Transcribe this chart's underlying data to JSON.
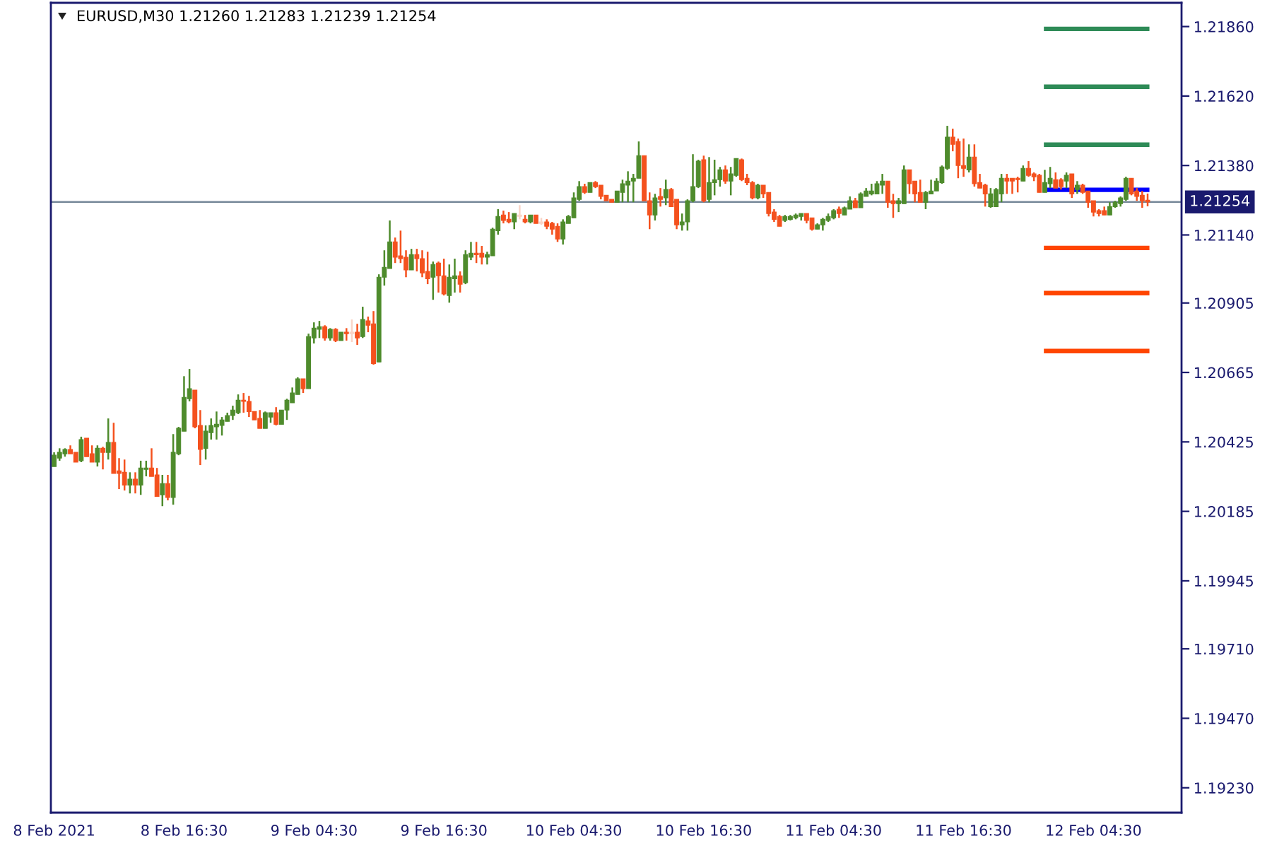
{
  "chart_data": {
    "type": "candlestick",
    "title": "EURUSD,M30 1.21260 1.21283 1.21239 1.21254",
    "x": [
      "2021-02-08T04:30",
      "2021-02-08T05:00",
      "2021-02-08T05:30",
      "2021-02-08T06:00",
      "2021-02-08T06:30",
      "2021-02-08T07:00",
      "2021-02-08T07:30",
      "2021-02-08T08:00",
      "2021-02-08T08:30",
      "2021-02-08T09:00",
      "2021-02-08T09:30",
      "2021-02-08T10:00",
      "2021-02-08T10:30",
      "2021-02-08T11:00",
      "2021-02-08T11:30",
      "2021-02-08T12:00",
      "2021-02-08T12:30",
      "2021-02-08T13:00",
      "2021-02-08T13:30",
      "2021-02-08T14:00",
      "2021-02-08T14:30",
      "2021-02-08T15:00",
      "2021-02-08T15:30",
      "2021-02-08T16:00",
      "2021-02-08T16:30",
      "2021-02-08T17:00",
      "2021-02-08T17:30",
      "2021-02-08T18:00",
      "2021-02-08T18:30",
      "2021-02-08T19:00",
      "2021-02-08T19:30",
      "2021-02-08T20:00",
      "2021-02-08T20:30",
      "2021-02-08T21:00",
      "2021-02-08T21:30",
      "2021-02-08T22:00",
      "2021-02-08T22:30",
      "2021-02-08T23:00",
      "2021-02-08T23:30",
      "2021-02-09T00:00",
      "2021-02-09T00:30",
      "2021-02-09T01:00",
      "2021-02-09T01:30",
      "2021-02-09T02:00",
      "2021-02-09T02:30",
      "2021-02-09T03:00",
      "2021-02-09T03:30",
      "2021-02-09T04:00",
      "2021-02-09T04:30",
      "2021-02-09T05:00",
      "2021-02-09T05:30",
      "2021-02-09T06:00",
      "2021-02-09T06:30",
      "2021-02-09T07:00",
      "2021-02-09T07:30",
      "2021-02-09T08:00",
      "2021-02-09T08:30",
      "2021-02-09T09:00",
      "2021-02-09T09:30",
      "2021-02-09T10:00",
      "2021-02-09T10:30",
      "2021-02-09T11:00",
      "2021-02-09T11:30",
      "2021-02-09T12:00",
      "2021-02-09T12:30",
      "2021-02-09T13:00",
      "2021-02-09T13:30",
      "2021-02-09T14:00",
      "2021-02-09T14:30",
      "2021-02-09T15:00",
      "2021-02-09T15:30",
      "2021-02-09T16:00",
      "2021-02-09T16:30",
      "2021-02-09T17:00",
      "2021-02-09T17:30",
      "2021-02-09T18:00",
      "2021-02-09T18:30",
      "2021-02-09T19:00",
      "2021-02-09T19:30",
      "2021-02-09T20:00",
      "2021-02-09T20:30",
      "2021-02-09T21:00",
      "2021-02-09T21:30",
      "2021-02-09T22:00",
      "2021-02-09T22:30",
      "2021-02-09T23:00",
      "2021-02-09T23:30",
      "2021-02-10T00:00",
      "2021-02-10T00:30",
      "2021-02-10T01:00",
      "2021-02-10T01:30",
      "2021-02-10T02:00",
      "2021-02-10T02:30",
      "2021-02-10T03:00",
      "2021-02-10T03:30",
      "2021-02-10T04:00",
      "2021-02-10T04:30",
      "2021-02-10T05:00",
      "2021-02-10T05:30",
      "2021-02-10T06:00",
      "2021-02-10T06:30",
      "2021-02-10T07:00",
      "2021-02-10T07:30",
      "2021-02-10T08:00",
      "2021-02-10T08:30",
      "2021-02-10T09:00",
      "2021-02-10T09:30",
      "2021-02-10T10:00",
      "2021-02-10T10:30",
      "2021-02-10T11:00",
      "2021-02-10T11:30",
      "2021-02-10T12:00",
      "2021-02-10T12:30",
      "2021-02-10T13:00",
      "2021-02-10T13:30",
      "2021-02-10T14:00",
      "2021-02-10T14:30",
      "2021-02-10T15:00",
      "2021-02-10T15:30",
      "2021-02-10T16:00",
      "2021-02-10T16:30",
      "2021-02-10T17:00",
      "2021-02-10T17:30",
      "2021-02-10T18:00",
      "2021-02-10T18:30",
      "2021-02-10T19:00",
      "2021-02-10T19:30",
      "2021-02-10T20:00",
      "2021-02-10T20:30",
      "2021-02-10T21:00",
      "2021-02-10T21:30",
      "2021-02-10T22:00",
      "2021-02-10T22:30",
      "2021-02-10T23:00",
      "2021-02-10T23:30",
      "2021-02-11T00:00",
      "2021-02-11T00:30",
      "2021-02-11T01:00",
      "2021-02-11T01:30",
      "2021-02-11T02:00",
      "2021-02-11T02:30",
      "2021-02-11T03:00",
      "2021-02-11T03:30",
      "2021-02-11T04:00",
      "2021-02-11T04:30",
      "2021-02-11T05:00",
      "2021-02-11T05:30",
      "2021-02-11T06:00",
      "2021-02-11T06:30",
      "2021-02-11T07:00",
      "2021-02-11T07:30",
      "2021-02-11T08:00",
      "2021-02-11T08:30",
      "2021-02-11T09:00",
      "2021-02-11T09:30",
      "2021-02-11T10:00",
      "2021-02-11T10:30",
      "2021-02-11T11:00",
      "2021-02-11T11:30",
      "2021-02-11T12:00",
      "2021-02-11T12:30",
      "2021-02-11T13:00",
      "2021-02-11T13:30",
      "2021-02-11T14:00",
      "2021-02-11T14:30",
      "2021-02-11T15:00",
      "2021-02-11T15:30",
      "2021-02-11T16:00",
      "2021-02-11T16:30",
      "2021-02-11T17:00",
      "2021-02-11T17:30",
      "2021-02-11T18:00",
      "2021-02-11T18:30",
      "2021-02-11T19:00",
      "2021-02-11T19:30",
      "2021-02-11T20:00",
      "2021-02-11T20:30",
      "2021-02-11T21:00",
      "2021-02-11T21:30",
      "2021-02-11T22:00",
      "2021-02-11T22:30",
      "2021-02-11T23:00",
      "2021-02-11T23:30",
      "2021-02-12T00:00",
      "2021-02-12T00:30",
      "2021-02-12T01:00",
      "2021-02-12T01:30",
      "2021-02-12T02:00",
      "2021-02-12T02:30",
      "2021-02-12T03:00",
      "2021-02-12T03:30",
      "2021-02-12T04:00",
      "2021-02-12T04:30",
      "2021-02-12T05:00",
      "2021-02-12T05:30",
      "2021-02-12T06:00",
      "2021-02-12T06:30",
      "2021-02-12T07:00",
      "2021-02-12T07:30",
      "2021-02-12T08:00",
      "2021-02-12T08:30",
      "2021-02-12T09:00",
      "2021-02-12T09:30"
    ],
    "ohlc": [
      [
        1.2034,
        1.20389,
        1.2034,
        1.20379
      ],
      [
        1.20369,
        1.20403,
        1.2036,
        1.20389
      ],
      [
        1.20384,
        1.20403,
        1.20374,
        1.20399
      ],
      [
        1.20399,
        1.20413,
        1.20384,
        1.20384
      ],
      [
        1.20389,
        1.20389,
        1.20355,
        1.20355
      ],
      [
        1.2036,
        1.20443,
        1.20355,
        1.20433
      ],
      [
        1.20438,
        1.20438,
        1.20374,
        1.20374
      ],
      [
        1.20384,
        1.20413,
        1.20355,
        1.20355
      ],
      [
        1.20355,
        1.20413,
        1.2034,
        1.20403
      ],
      [
        1.20403,
        1.20408,
        1.2033,
        1.20389
      ],
      [
        1.20389,
        1.20506,
        1.20364,
        1.20423
      ],
      [
        1.20423,
        1.20491,
        1.20316,
        1.20316
      ],
      [
        1.20325,
        1.20369,
        1.20262,
        1.20316
      ],
      [
        1.2032,
        1.20364,
        1.20257,
        1.20276
      ],
      [
        1.20276,
        1.2032,
        1.20247,
        1.20296
      ],
      [
        1.20296,
        1.2032,
        1.20247,
        1.20276
      ],
      [
        1.20276,
        1.2036,
        1.20242,
        1.20335
      ],
      [
        1.2033,
        1.2036,
        1.20306,
        1.20335
      ],
      [
        1.20335,
        1.20403,
        1.20306,
        1.20306
      ],
      [
        1.20311,
        1.20335,
        1.20237,
        1.20237
      ],
      [
        1.20242,
        1.20311,
        1.20203,
        1.20281
      ],
      [
        1.20281,
        1.20311,
        1.20223,
        1.20233
      ],
      [
        1.20233,
        1.20452,
        1.20208,
        1.20389
      ],
      [
        1.20384,
        1.20477,
        1.20379,
        1.20472
      ],
      [
        1.20462,
        1.20652,
        1.20462,
        1.20579
      ],
      [
        1.20574,
        1.20677,
        1.20565,
        1.20609
      ],
      [
        1.20604,
        1.20604,
        1.20472,
        1.20477
      ],
      [
        1.20482,
        1.20535,
        1.20345,
        1.20399
      ],
      [
        1.20403,
        1.20482,
        1.20364,
        1.20462
      ],
      [
        1.20457,
        1.20506,
        1.20433,
        1.20482
      ],
      [
        1.20477,
        1.2053,
        1.20433,
        1.20486
      ],
      [
        1.20482,
        1.20511,
        1.20447,
        1.20501
      ],
      [
        1.20496,
        1.20526,
        1.20496,
        1.20516
      ],
      [
        1.20516,
        1.2055,
        1.20501,
        1.20535
      ],
      [
        1.20526,
        1.20589,
        1.20521,
        1.20569
      ],
      [
        1.20569,
        1.20594,
        1.20526,
        1.20565
      ],
      [
        1.20565,
        1.20584,
        1.20511,
        1.2053
      ],
      [
        1.2053,
        1.2053,
        1.20501,
        1.20501
      ],
      [
        1.20506,
        1.20535,
        1.20472,
        1.20472
      ],
      [
        1.20472,
        1.2053,
        1.20472,
        1.20526
      ],
      [
        1.20511,
        1.20526,
        1.20491,
        1.20526
      ],
      [
        1.20526,
        1.20545,
        1.20482,
        1.20486
      ],
      [
        1.20486,
        1.20535,
        1.20486,
        1.20535
      ],
      [
        1.20535,
        1.20574,
        1.20501,
        1.20569
      ],
      [
        1.2056,
        1.20613,
        1.2056,
        1.20594
      ],
      [
        1.20589,
        1.20648,
        1.20589,
        1.20643
      ],
      [
        1.20643,
        1.20643,
        1.20594,
        1.20609
      ],
      [
        1.20609,
        1.20799,
        1.20609,
        1.20789
      ],
      [
        1.20784,
        1.20838,
        1.20765,
        1.20818
      ],
      [
        1.20814,
        1.20843,
        1.20784,
        1.20823
      ],
      [
        1.20823,
        1.20828,
        1.20775,
        1.20784
      ],
      [
        1.20784,
        1.20818,
        1.20775,
        1.20814
      ],
      [
        1.20814,
        1.20818,
        1.2077,
        1.20775
      ],
      [
        1.20775,
        1.20804,
        1.20775,
        1.20804
      ],
      [
        1.20804,
        1.20818,
        1.20775,
        1.20799
      ],
      [
        1.20804,
        1.20848,
        1.2077,
        1.20799
      ],
      [
        1.20804,
        1.20833,
        1.2076,
        1.20784
      ],
      [
        1.20789,
        1.20892,
        1.20784,
        1.20848
      ],
      [
        1.20843,
        1.20858,
        1.20804,
        1.20828
      ],
      [
        1.20833,
        1.20877,
        1.20692,
        1.20696
      ],
      [
        1.20701,
        1.21004,
        1.20701,
        1.20994
      ],
      [
        1.20994,
        1.21087,
        1.20965,
        1.21028
      ],
      [
        1.21024,
        1.2119,
        1.21024,
        1.21116
      ],
      [
        1.21116,
        1.21131,
        1.21043,
        1.21063
      ],
      [
        1.21068,
        1.21155,
        1.21043,
        1.21058
      ],
      [
        1.21063,
        1.21087,
        1.20994,
        1.21019
      ],
      [
        1.21019,
        1.21092,
        1.21019,
        1.21072
      ],
      [
        1.21072,
        1.21092,
        1.21014,
        1.21058
      ],
      [
        1.21058,
        1.21087,
        1.20994,
        1.21009
      ],
      [
        1.21014,
        1.21082,
        1.2097,
        1.20989
      ],
      [
        1.20994,
        1.21048,
        1.20916,
        1.21038
      ],
      [
        1.21043,
        1.21048,
        1.20941,
        1.20999
      ],
      [
        1.20999,
        1.21058,
        1.20931,
        1.20936
      ],
      [
        1.20931,
        1.21038,
        1.20906,
        1.20994
      ],
      [
        1.20989,
        1.21058,
        1.20941,
        1.20999
      ],
      [
        1.20999,
        1.21014,
        1.20941,
        1.2097
      ],
      [
        1.20975,
        1.21087,
        1.2097,
        1.21072
      ],
      [
        1.21063,
        1.21116,
        1.21053,
        1.21077
      ],
      [
        1.21077,
        1.21116,
        1.21043,
        1.21072
      ],
      [
        1.21077,
        1.21102,
        1.21038,
        1.21063
      ],
      [
        1.21063,
        1.21082,
        1.21038,
        1.21072
      ],
      [
        1.21068,
        1.21165,
        1.21068,
        1.2116
      ],
      [
        1.21155,
        1.21229,
        1.21141,
        1.21204
      ],
      [
        1.21209,
        1.21224,
        1.2118,
        1.2119
      ],
      [
        1.21194,
        1.21219,
        1.2118,
        1.21185
      ],
      [
        1.21185,
        1.21214,
        1.2116,
        1.21214
      ],
      [
        1.21209,
        1.21243,
        1.21194,
        1.21204
      ],
      [
        1.21194,
        1.21209,
        1.2118,
        1.21185
      ],
      [
        1.21185,
        1.21209,
        1.2118,
        1.21209
      ],
      [
        1.21209,
        1.21209,
        1.2118,
        1.2118
      ],
      [
        1.21185,
        1.21199,
        1.21175,
        1.2118
      ],
      [
        1.21185,
        1.21194,
        1.2116,
        1.2117
      ],
      [
        1.2118,
        1.21185,
        1.21141,
        1.2116
      ],
      [
        1.2117,
        1.2118,
        1.21116,
        1.21126
      ],
      [
        1.21126,
        1.21194,
        1.21107,
        1.21185
      ],
      [
        1.2118,
        1.21209,
        1.2118,
        1.21204
      ],
      [
        1.21199,
        1.21287,
        1.21199,
        1.21268
      ],
      [
        1.21263,
        1.21326,
        1.21258,
        1.21307
      ],
      [
        1.21307,
        1.21317,
        1.21282,
        1.21287
      ],
      [
        1.21287,
        1.21321,
        1.21287,
        1.21321
      ],
      [
        1.21321,
        1.21326,
        1.21302,
        1.21307
      ],
      [
        1.21312,
        1.21312,
        1.21263,
        1.21273
      ],
      [
        1.21277,
        1.21277,
        1.21258,
        1.21258
      ],
      [
        1.21263,
        1.21263,
        1.21253,
        1.21253
      ],
      [
        1.21253,
        1.21292,
        1.21253,
        1.21292
      ],
      [
        1.21287,
        1.21331,
        1.21253,
        1.21317
      ],
      [
        1.21312,
        1.2136,
        1.21253,
        1.21326
      ],
      [
        1.21326,
        1.21351,
        1.21253,
        1.21336
      ],
      [
        1.21336,
        1.21463,
        1.21336,
        1.21414
      ],
      [
        1.21414,
        1.21414,
        1.21258,
        1.21258
      ],
      [
        1.21258,
        1.21287,
        1.2116,
        1.21209
      ],
      [
        1.21209,
        1.21282,
        1.2119,
        1.21268
      ],
      [
        1.21273,
        1.21302,
        1.21238,
        1.21263
      ],
      [
        1.21268,
        1.21331,
        1.21243,
        1.21297
      ],
      [
        1.21297,
        1.21302,
        1.21238,
        1.21238
      ],
      [
        1.21263,
        1.21263,
        1.2116,
        1.21175
      ],
      [
        1.21175,
        1.21214,
        1.21155,
        1.21185
      ],
      [
        1.21185,
        1.21263,
        1.21155,
        1.21258
      ],
      [
        1.21258,
        1.21419,
        1.21253,
        1.21307
      ],
      [
        1.21307,
        1.214,
        1.21302,
        1.21395
      ],
      [
        1.214,
        1.21414,
        1.21253,
        1.21258
      ],
      [
        1.21263,
        1.21409,
        1.21253,
        1.21321
      ],
      [
        1.21321,
        1.214,
        1.21277,
        1.21331
      ],
      [
        1.21331,
        1.21375,
        1.21307,
        1.21365
      ],
      [
        1.21365,
        1.2138,
        1.21317,
        1.21326
      ],
      [
        1.21326,
        1.21375,
        1.21277,
        1.21351
      ],
      [
        1.21346,
        1.21404,
        1.21341,
        1.21404
      ],
      [
        1.214,
        1.21404,
        1.21326,
        1.21331
      ],
      [
        1.21336,
        1.21351,
        1.21312,
        1.21321
      ],
      [
        1.21321,
        1.21326,
        1.21263,
        1.21268
      ],
      [
        1.21268,
        1.21317,
        1.21263,
        1.21312
      ],
      [
        1.21312,
        1.21312,
        1.21268,
        1.21282
      ],
      [
        1.21287,
        1.21287,
        1.21204,
        1.21214
      ],
      [
        1.21219,
        1.21229,
        1.21185,
        1.21194
      ],
      [
        1.21204,
        1.21209,
        1.2117,
        1.2117
      ],
      [
        1.2119,
        1.21209,
        1.21185,
        1.21204
      ],
      [
        1.21194,
        1.21209,
        1.2119,
        1.21204
      ],
      [
        1.21199,
        1.21214,
        1.21194,
        1.21209
      ],
      [
        1.21204,
        1.21214,
        1.2119,
        1.21214
      ],
      [
        1.21214,
        1.21214,
        1.2118,
        1.2119
      ],
      [
        1.21199,
        1.21199,
        1.21155,
        1.2116
      ],
      [
        1.2116,
        1.2118,
        1.2116,
        1.21175
      ],
      [
        1.21175,
        1.21199,
        1.21155,
        1.21194
      ],
      [
        1.2119,
        1.21214,
        1.21185,
        1.21204
      ],
      [
        1.21199,
        1.21229,
        1.21194,
        1.21224
      ],
      [
        1.21229,
        1.21238,
        1.21199,
        1.21214
      ],
      [
        1.21209,
        1.21238,
        1.21209,
        1.21234
      ],
      [
        1.21229,
        1.21273,
        1.21229,
        1.21258
      ],
      [
        1.21258,
        1.21268,
        1.21234,
        1.21234
      ],
      [
        1.21234,
        1.21287,
        1.21234,
        1.21282
      ],
      [
        1.21273,
        1.21302,
        1.21273,
        1.21292
      ],
      [
        1.21282,
        1.21317,
        1.21277,
        1.21292
      ],
      [
        1.21282,
        1.21326,
        1.21282,
        1.21317
      ],
      [
        1.21312,
        1.21351,
        1.21282,
        1.21326
      ],
      [
        1.21326,
        1.21326,
        1.21234,
        1.21253
      ],
      [
        1.21258,
        1.21282,
        1.21199,
        1.21248
      ],
      [
        1.21248,
        1.21268,
        1.21219,
        1.21258
      ],
      [
        1.21248,
        1.2138,
        1.21248,
        1.21365
      ],
      [
        1.21365,
        1.21365,
        1.21282,
        1.21317
      ],
      [
        1.21326,
        1.21326,
        1.21253,
        1.21282
      ],
      [
        1.21287,
        1.21331,
        1.21253,
        1.21253
      ],
      [
        1.21253,
        1.21292,
        1.21229,
        1.21287
      ],
      [
        1.21282,
        1.21331,
        1.21282,
        1.21292
      ],
      [
        1.21292,
        1.21336,
        1.21292,
        1.21326
      ],
      [
        1.21321,
        1.2138,
        1.21317,
        1.21375
      ],
      [
        1.2137,
        1.21517,
        1.21365,
        1.21478
      ],
      [
        1.21478,
        1.21507,
        1.21429,
        1.21453
      ],
      [
        1.21463,
        1.21473,
        1.21336,
        1.2138
      ],
      [
        1.2138,
        1.21473,
        1.21341,
        1.2137
      ],
      [
        1.21365,
        1.21453,
        1.21356,
        1.21409
      ],
      [
        1.21409,
        1.21453,
        1.21307,
        1.21317
      ],
      [
        1.21321,
        1.21351,
        1.21302,
        1.21302
      ],
      [
        1.21312,
        1.21317,
        1.21238,
        1.21282
      ],
      [
        1.21238,
        1.21302,
        1.21234,
        1.21282
      ],
      [
        1.21238,
        1.21302,
        1.21238,
        1.21297
      ],
      [
        1.21282,
        1.21351,
        1.21253,
        1.21336
      ],
      [
        1.21336,
        1.21351,
        1.21282,
        1.21326
      ],
      [
        1.21336,
        1.21336,
        1.21282,
        1.21326
      ],
      [
        1.21336,
        1.21341,
        1.21287,
        1.21331
      ],
      [
        1.21326,
        1.2138,
        1.21326,
        1.2137
      ],
      [
        1.2137,
        1.21395,
        1.21341,
        1.21346
      ],
      [
        1.21351,
        1.21356,
        1.21326,
        1.21341
      ],
      [
        1.21346,
        1.21351,
        1.21287,
        1.21287
      ],
      [
        1.21287,
        1.21365,
        1.21287,
        1.21321
      ],
      [
        1.21317,
        1.21375,
        1.21302,
        1.21336
      ],
      [
        1.21331,
        1.21356,
        1.21302,
        1.21302
      ],
      [
        1.21331,
        1.21336,
        1.21297,
        1.21307
      ],
      [
        1.21326,
        1.21356,
        1.21302,
        1.21346
      ],
      [
        1.21351,
        1.21351,
        1.21268,
        1.21282
      ],
      [
        1.21297,
        1.21326,
        1.21282,
        1.21312
      ],
      [
        1.21312,
        1.21317,
        1.21282,
        1.21287
      ],
      [
        1.21292,
        1.21292,
        1.21234,
        1.21253
      ],
      [
        1.21258,
        1.21258,
        1.21204,
        1.21219
      ],
      [
        1.21224,
        1.21229,
        1.21204,
        1.21214
      ],
      [
        1.21224,
        1.21238,
        1.21209,
        1.21209
      ],
      [
        1.21209,
        1.21253,
        1.21209,
        1.21238
      ],
      [
        1.21238,
        1.21258,
        1.21234,
        1.21253
      ],
      [
        1.21248,
        1.21273,
        1.21238,
        1.21268
      ],
      [
        1.21263,
        1.21341,
        1.21258,
        1.21336
      ],
      [
        1.21336,
        1.21336,
        1.21277,
        1.21282
      ],
      [
        1.21292,
        1.21302,
        1.21258,
        1.21273
      ],
      [
        1.21277,
        1.21292,
        1.21234,
        1.21258
      ],
      [
        1.2126,
        1.21283,
        1.21239,
        1.21254
      ]
    ],
    "colors": [
      "#4e8b2c",
      "#4e8b2c",
      "#4e8b2c",
      "#f4511e",
      "#f4511e",
      "#4e8b2c",
      "#f4511e",
      "#f4511e",
      "#4e8b2c",
      "#f4511e",
      "#4e8b2c",
      "#f4511e",
      "#f4511e",
      "#f4511e",
      "#4e8b2c",
      "#f4511e",
      "#4e8b2c",
      "#4e8b2c",
      "#f4511e",
      "#f4511e",
      "#4e8b2c",
      "#f4511e",
      "#4e8b2c",
      "#4e8b2c",
      "#4e8b2c",
      "#4e8b2c",
      "#f4511e",
      "#f4511e",
      "#4e8b2c",
      "#4e8b2c",
      "#4e8b2c",
      "#4e8b2c",
      "#4e8b2c",
      "#4e8b2c",
      "#4e8b2c",
      "#f4511e",
      "#f4511e",
      "#f4511e",
      "#f4511e",
      "#4e8b2c",
      "#4e8b2c",
      "#f4511e",
      "#4e8b2c",
      "#4e8b2c",
      "#4e8b2c",
      "#4e8b2c",
      "#f4511e",
      "#4e8b2c",
      "#4e8b2c",
      "#4e8b2c",
      "#f4511e",
      "#4e8b2c",
      "#f4511e",
      "#4e8b2c",
      "#f4511e",
      "#f9d5c8",
      "#f4511e",
      "#4e8b2c",
      "#f4511e",
      "#f4511e",
      "#4e8b2c",
      "#4e8b2c",
      "#4e8b2c",
      "#f4511e",
      "#f4511e",
      "#f4511e",
      "#4e8b2c",
      "#f4511e",
      "#f4511e",
      "#f4511e",
      "#4e8b2c",
      "#f4511e",
      "#f4511e",
      "#4e8b2c",
      "#4e8b2c",
      "#f4511e",
      "#4e8b2c",
      "#4e8b2c",
      "#f4511e",
      "#f4511e",
      "#4e8b2c",
      "#4e8b2c",
      "#4e8b2c",
      "#f4511e",
      "#f4511e",
      "#4e8b2c",
      "#f9d5c8",
      "#f4511e",
      "#4e8b2c",
      "#f4511e",
      "#f9d5c8",
      "#f4511e",
      "#f4511e",
      "#f4511e",
      "#4e8b2c",
      "#4e8b2c",
      "#4e8b2c",
      "#4e8b2c",
      "#f4511e",
      "#4e8b2c",
      "#f4511e",
      "#f4511e",
      "#f4511e",
      "#f4511e",
      "#4e8b2c",
      "#4e8b2c",
      "#4e8b2c",
      "#4e8b2c",
      "#4e8b2c",
      "#f4511e",
      "#f4511e",
      "#4e8b2c",
      "#f4511e",
      "#4e8b2c",
      "#f4511e",
      "#f4511e",
      "#4e8b2c",
      "#4e8b2c",
      "#4e8b2c",
      "#4e8b2c",
      "#f4511e",
      "#4e8b2c",
      "#4e8b2c",
      "#4e8b2c",
      "#f4511e",
      "#4e8b2c",
      "#4e8b2c",
      "#f4511e",
      "#f4511e",
      "#f4511e",
      "#4e8b2c",
      "#f4511e",
      "#f4511e",
      "#f4511e",
      "#f4511e",
      "#4e8b2c",
      "#4e8b2c",
      "#4e8b2c",
      "#4e8b2c",
      "#f4511e",
      "#f4511e",
      "#4e8b2c",
      "#4e8b2c",
      "#4e8b2c",
      "#4e8b2c",
      "#f4511e",
      "#4e8b2c",
      "#4e8b2c",
      "#f4511e",
      "#4e8b2c",
      "#4e8b2c",
      "#4e8b2c",
      "#4e8b2c",
      "#4e8b2c",
      "#f4511e",
      "#f4511e",
      "#4e8b2c",
      "#4e8b2c",
      "#f4511e",
      "#f4511e",
      "#f4511e",
      "#4e8b2c",
      "#4e8b2c",
      "#4e8b2c",
      "#4e8b2c",
      "#4e8b2c",
      "#f4511e",
      "#f4511e",
      "#f4511e",
      "#4e8b2c",
      "#f4511e",
      "#f4511e",
      "#f4511e",
      "#4e8b2c",
      "#4e8b2c",
      "#4e8b2c",
      "#f4511e",
      "#f4511e",
      "#f4511e",
      "#4e8b2c",
      "#f4511e",
      "#f4511e",
      "#f4511e",
      "#4e8b2c",
      "#4e8b2c",
      "#f4511e",
      "#f4511e",
      "#4e8b2c",
      "#f4511e",
      "#4e8b2c",
      "#f4511e",
      "#f4511e",
      "#f4511e",
      "#f4511e",
      "#f4511e",
      "#4e8b2c",
      "#4e8b2c",
      "#4e8b2c",
      "#4e8b2c",
      "#f4511e",
      "#f4511e",
      "#f4511e",
      "#f4511e"
    ],
    "series": [
      {
        "type": "line",
        "x": [
          "2021-02-11T23:55",
          "2021-02-12T09:40"
        ],
        "values": [
          1.21852,
          1.21852
        ],
        "color": "#2e8b57"
      },
      {
        "type": "line",
        "x": [
          "2021-02-11T23:55",
          "2021-02-12T09:40"
        ],
        "values": [
          1.21652,
          1.21652
        ],
        "color": "#2e8b57"
      },
      {
        "type": "line",
        "x": [
          "2021-02-11T23:55",
          "2021-02-12T09:40"
        ],
        "values": [
          1.21452,
          1.21452
        ],
        "color": "#2e8b57"
      },
      {
        "type": "line",
        "x": [
          "2021-02-12T00:12",
          "2021-02-12T09:40"
        ],
        "values": [
          1.21296,
          1.21296
        ],
        "color": "#0000ff"
      },
      {
        "type": "line",
        "x": [
          "2021-02-11T23:55",
          "2021-02-12T09:40"
        ],
        "values": [
          1.21095,
          1.21095
        ],
        "color": "#ff4500"
      },
      {
        "type": "line",
        "x": [
          "2021-02-11T23:55",
          "2021-02-12T09:40"
        ],
        "values": [
          1.20939,
          1.20939
        ],
        "color": "#ff4500"
      },
      {
        "type": "line",
        "x": [
          "2021-02-11T23:55",
          "2021-02-12T09:40"
        ],
        "values": [
          1.20739,
          1.20739
        ],
        "color": "#ff4500"
      }
    ],
    "ref_lines": [
      {
        "axis": "y",
        "value": 1.21254,
        "label": "1.21254",
        "color": "#778899"
      }
    ],
    "xlim": [
      "2021-02-08T04:12",
      "2021-02-12T12:38"
    ],
    "xticks": [
      {
        "value": "2021-02-08T04:30",
        "label": "8 Feb 2021"
      },
      {
        "value": "2021-02-08T16:30",
        "label": "8 Feb 16:30"
      },
      {
        "value": "2021-02-09T04:30",
        "label": "9 Feb 04:30"
      },
      {
        "value": "2021-02-09T16:30",
        "label": "9 Feb 16:30"
      },
      {
        "value": "2021-02-10T04:30",
        "label": "10 Feb 04:30"
      },
      {
        "value": "2021-02-10T16:30",
        "label": "10 Feb 16:30"
      },
      {
        "value": "2021-02-11T04:30",
        "label": "11 Feb 04:30"
      },
      {
        "value": "2021-02-11T16:30",
        "label": "11 Feb 16:30"
      },
      {
        "value": "2021-02-12T04:30",
        "label": "12 Feb 04:30"
      }
    ],
    "ylim": [
      1.19144,
      1.21942
    ],
    "yticks": [
      {
        "value": 1.2186,
        "label": "1.21860"
      },
      {
        "value": 1.2162,
        "label": "1.21620"
      },
      {
        "value": 1.2138,
        "label": "1.21380"
      },
      {
        "value": 1.2114,
        "label": "1.21140"
      },
      1.20905,
      1.20665,
      1.20425,
      1.20185,
      1.19945,
      {
        "value": 1.1971,
        "label": "1.19710"
      },
      {
        "value": 1.1947,
        "label": "1.19470"
      },
      {
        "value": 1.1923,
        "label": "1.19230"
      }
    ]
  }
}
